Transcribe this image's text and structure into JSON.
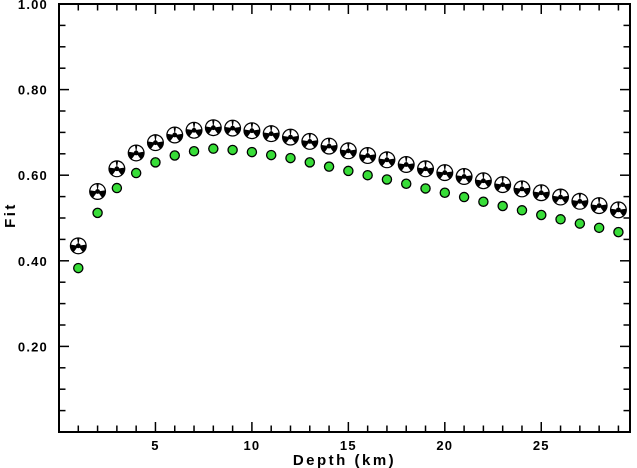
{
  "figure": {
    "background": "#ffffff",
    "frame_color": "#000000"
  },
  "chart_data": {
    "type": "scatter",
    "title": "",
    "xlabel": "Depth (km)",
    "ylabel": "Fit",
    "xlim": [
      0,
      29.6
    ],
    "ylim": [
      0.0,
      1.0
    ],
    "grid": false,
    "legend": null,
    "x_major_ticks": [
      5,
      10,
      15,
      20,
      25
    ],
    "x_major_tick_labels": [
      "5",
      "10",
      "15",
      "20",
      "25"
    ],
    "x_minor_step": 1,
    "y_major_ticks": [
      0.2,
      0.4,
      0.6,
      0.8,
      1.0
    ],
    "y_major_tick_labels": [
      "0.20",
      "0.40",
      "0.60",
      "0.80",
      "1.00"
    ],
    "y_minor_step": 0.05,
    "x": [
      1,
      2,
      3,
      4,
      5,
      6,
      7,
      8,
      9,
      10,
      11,
      12,
      13,
      14,
      15,
      16,
      17,
      18,
      19,
      20,
      21,
      22,
      23,
      24,
      25,
      26,
      27,
      28,
      29
    ],
    "series": [
      {
        "name": "fit-beachball-markers",
        "marker": "beachball",
        "fill": "#000000",
        "accent": "#ffffff",
        "values": [
          0.435,
          0.562,
          0.615,
          0.652,
          0.676,
          0.694,
          0.705,
          0.711,
          0.71,
          0.704,
          0.697,
          0.689,
          0.679,
          0.668,
          0.657,
          0.646,
          0.636,
          0.625,
          0.615,
          0.606,
          0.597,
          0.587,
          0.578,
          0.568,
          0.559,
          0.549,
          0.539,
          0.529,
          0.519
        ]
      },
      {
        "name": "fit-green-dots",
        "marker": "circle",
        "fill": "#38dd38",
        "outline": "#000000",
        "values": [
          0.383,
          0.512,
          0.57,
          0.605,
          0.63,
          0.646,
          0.656,
          0.662,
          0.659,
          0.654,
          0.647,
          0.64,
          0.63,
          0.62,
          0.61,
          0.6,
          0.59,
          0.58,
          0.569,
          0.559,
          0.549,
          0.538,
          0.528,
          0.518,
          0.507,
          0.497,
          0.487,
          0.477,
          0.467
        ]
      }
    ]
  }
}
